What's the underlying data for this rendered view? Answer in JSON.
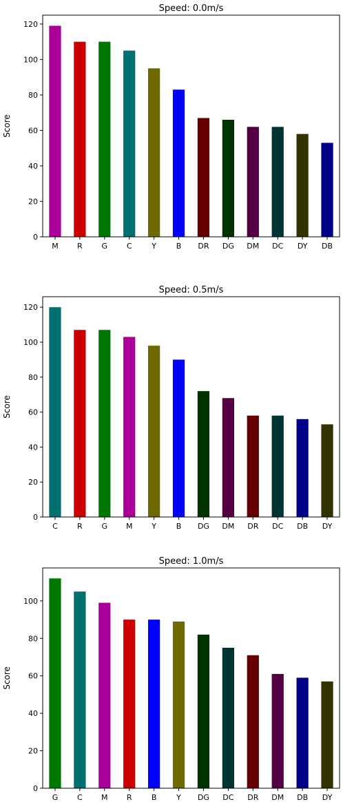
{
  "chart_data": [
    {
      "type": "bar",
      "title": "Speed: 0.0m/s",
      "xlabel": "",
      "ylabel": "Score",
      "ylim": [
        0,
        125
      ],
      "yticks": [
        0,
        20,
        40,
        60,
        80,
        100,
        120
      ],
      "categories": [
        "M",
        "R",
        "G",
        "C",
        "Y",
        "B",
        "DR",
        "DG",
        "DM",
        "DC",
        "DY",
        "DB"
      ],
      "values": [
        119,
        110,
        110,
        105,
        95,
        83,
        67,
        66,
        62,
        62,
        58,
        53
      ],
      "colors": [
        "#aa0099",
        "#cc0000",
        "#007700",
        "#007070",
        "#6e6a00",
        "#0000ff",
        "#660000",
        "#003300",
        "#550044",
        "#003333",
        "#333300",
        "#000088"
      ],
      "grid": false,
      "legend": "none"
    },
    {
      "type": "bar",
      "title": "Speed: 0.5m/s",
      "xlabel": "",
      "ylabel": "Score",
      "ylim": [
        0,
        126
      ],
      "yticks": [
        0,
        20,
        40,
        60,
        80,
        100,
        120
      ],
      "categories": [
        "C",
        "R",
        "G",
        "M",
        "Y",
        "B",
        "DG",
        "DM",
        "DR",
        "DC",
        "DB",
        "DY"
      ],
      "values": [
        120,
        107,
        107,
        103,
        98,
        90,
        72,
        68,
        58,
        58,
        56,
        53
      ],
      "colors": [
        "#007070",
        "#cc0000",
        "#007700",
        "#aa0099",
        "#6e6a00",
        "#0000ff",
        "#003300",
        "#550044",
        "#660000",
        "#003333",
        "#000088",
        "#333300"
      ],
      "grid": false,
      "legend": "none"
    },
    {
      "type": "bar",
      "title": "Speed: 1.0m/s",
      "xlabel": "",
      "ylabel": "Score",
      "ylim": [
        0,
        117.6
      ],
      "yticks": [
        0,
        20,
        40,
        60,
        80,
        100
      ],
      "categories": [
        "G",
        "C",
        "M",
        "R",
        "B",
        "Y",
        "DG",
        "DC",
        "DR",
        "DM",
        "DB",
        "DY"
      ],
      "values": [
        112,
        105,
        99,
        90,
        90,
        89,
        82,
        75,
        71,
        61,
        59,
        57
      ],
      "colors": [
        "#007700",
        "#007070",
        "#aa0099",
        "#cc0000",
        "#0000ff",
        "#6e6a00",
        "#003300",
        "#003333",
        "#660000",
        "#550044",
        "#000088",
        "#333300"
      ],
      "grid": false,
      "legend": "none"
    }
  ]
}
